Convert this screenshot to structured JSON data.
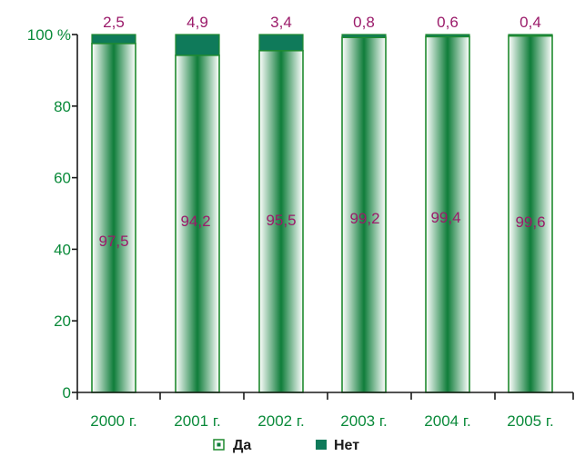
{
  "chart_data": {
    "type": "bar",
    "stacked": true,
    "categories": [
      "2000 г.",
      "2001 г.",
      "2002 г.",
      "2003 г.",
      "2004 г.",
      "2005 г."
    ],
    "series": [
      {
        "name": "Да",
        "values": [
          97.5,
          94.2,
          95.5,
          99.2,
          99.4,
          99.6
        ],
        "labels": [
          "97,5",
          "94,2",
          "95,5",
          "99,2",
          "99,4",
          "99,6"
        ]
      },
      {
        "name": "Нет",
        "values": [
          2.5,
          4.9,
          3.4,
          0.8,
          0.6,
          0.4
        ],
        "labels": [
          "2,5",
          "4,9",
          "3,4",
          "0,8",
          "0,6",
          "0,4"
        ]
      }
    ],
    "yticks": [
      "0",
      "20",
      "40",
      "60",
      "80",
      "100 %"
    ],
    "ylim": [
      0,
      100
    ],
    "grid": false,
    "legend_position": "bottom",
    "colors": {
      "yes_center": "#0f7d3a",
      "no": "#0f7a5a",
      "bar_outline": "#1f8a2e",
      "axis": "#1a1a1a",
      "tick_text": "#0a8a3a",
      "value_text": "#9b1b6a"
    }
  }
}
